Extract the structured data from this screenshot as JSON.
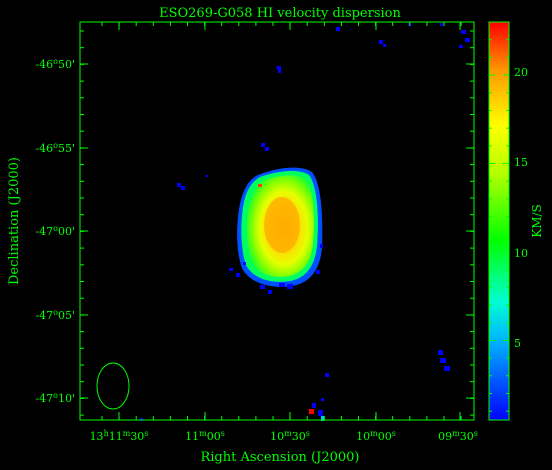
{
  "title": "ESO269-G058   HI velocity dispersion",
  "xlabel": "Right Ascension (J2000)",
  "ylabel": "Declination (J2000)",
  "colorbar_label": "KM/S",
  "colorbar_ticks": [
    "5",
    "10",
    "15",
    "20"
  ],
  "colorbar_range_kms": [
    0.5,
    23
  ],
  "dec_ticks": [
    {
      "deg": "-46",
      "min": "50"
    },
    {
      "deg": "-46",
      "min": "55"
    },
    {
      "deg": "-47",
      "min": "00"
    },
    {
      "deg": "-47",
      "min": "05"
    },
    {
      "deg": "-47",
      "min": "10"
    }
  ],
  "ra_ticks": [
    {
      "h": "13",
      "m": "11",
      "s": "30"
    },
    {
      "m": "11",
      "s": "00"
    },
    {
      "m": "10",
      "s": "30"
    },
    {
      "m": "10",
      "s": "00"
    },
    {
      "m": "09",
      "s": "30"
    }
  ],
  "colors": {
    "axis": "#00ff00",
    "background": "#000000",
    "beam": "#00ff00"
  },
  "colormap": [
    "#0000ff",
    "#00b4ff",
    "#00ffd0",
    "#00ff00",
    "#b4ff00",
    "#ffff00",
    "#ff9600",
    "#ff0000"
  ]
}
